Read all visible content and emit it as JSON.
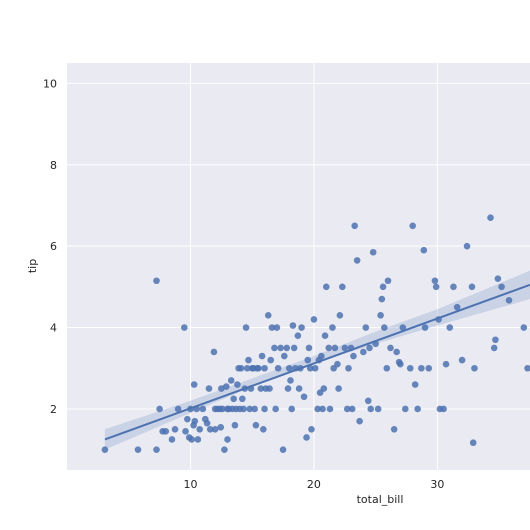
{
  "chart_data": {
    "type": "scatter",
    "title": "",
    "xlabel": "total_bill",
    "ylabel": "tip",
    "xlim": [
      0,
      37.5
    ],
    "ylim": [
      0.5,
      10.5
    ],
    "xticks": [
      10,
      20,
      30
    ],
    "yticks": [
      2,
      4,
      6,
      8,
      10
    ],
    "xtick_labels": [
      "10",
      "20",
      "30"
    ],
    "ytick_labels": [
      "2",
      "4",
      "6",
      "8",
      "10"
    ],
    "grid": true,
    "colors": {
      "background": "#eaeaf2",
      "grid": "#ffffff",
      "points": "#4c72b0",
      "line": "#4c72b0",
      "band": "#a5b6d6"
    },
    "regression": {
      "line": [
        [
          3.07,
          1.25
        ],
        [
          37.5,
          5.05
        ]
      ],
      "ci_band": {
        "x": [
          3.07,
          10,
          15,
          20,
          25,
          30,
          37.5
        ],
        "lower": [
          1.0,
          1.9,
          2.55,
          3.12,
          3.6,
          4.05,
          4.7
        ],
        "upper": [
          1.5,
          2.2,
          2.75,
          3.3,
          3.9,
          4.45,
          5.4
        ]
      }
    },
    "points": [
      [
        3.07,
        1.0
      ],
      [
        5.75,
        1.0
      ],
      [
        7.25,
        1.0
      ],
      [
        7.25,
        5.15
      ],
      [
        7.5,
        2.0
      ],
      [
        7.75,
        1.45
      ],
      [
        8.0,
        1.45
      ],
      [
        8.5,
        1.25
      ],
      [
        8.75,
        1.5
      ],
      [
        9.0,
        2.0
      ],
      [
        9.5,
        4.0
      ],
      [
        9.6,
        1.45
      ],
      [
        9.75,
        1.75
      ],
      [
        9.9,
        1.3
      ],
      [
        10.0,
        2.0
      ],
      [
        10.1,
        1.25
      ],
      [
        10.25,
        1.6
      ],
      [
        10.3,
        2.6
      ],
      [
        10.35,
        1.7
      ],
      [
        10.5,
        2.0
      ],
      [
        10.6,
        1.25
      ],
      [
        10.75,
        1.5
      ],
      [
        11.0,
        2.0
      ],
      [
        11.2,
        1.75
      ],
      [
        11.35,
        1.65
      ],
      [
        11.5,
        2.5
      ],
      [
        11.6,
        1.5
      ],
      [
        11.9,
        3.4
      ],
      [
        12.0,
        1.5
      ],
      [
        12.0,
        2.0
      ],
      [
        12.2,
        2.0
      ],
      [
        12.4,
        2.0
      ],
      [
        12.45,
        1.55
      ],
      [
        12.5,
        2.5
      ],
      [
        12.6,
        2.0
      ],
      [
        12.75,
        1.0
      ],
      [
        12.9,
        2.55
      ],
      [
        13.0,
        2.0
      ],
      [
        13.0,
        1.25
      ],
      [
        13.1,
        2.0
      ],
      [
        13.3,
        2.7
      ],
      [
        13.4,
        2.0
      ],
      [
        13.5,
        2.25
      ],
      [
        13.6,
        1.6
      ],
      [
        13.7,
        2.0
      ],
      [
        13.8,
        2.6
      ],
      [
        13.9,
        3.0
      ],
      [
        14.0,
        2.0
      ],
      [
        14.1,
        3.0
      ],
      [
        14.2,
        2.25
      ],
      [
        14.3,
        2.0
      ],
      [
        14.4,
        2.5
      ],
      [
        14.5,
        4.0
      ],
      [
        14.6,
        3.0
      ],
      [
        14.7,
        3.2
      ],
      [
        14.8,
        2.0
      ],
      [
        14.9,
        2.5
      ],
      [
        15.0,
        3.0
      ],
      [
        15.1,
        3.0
      ],
      [
        15.2,
        2.0
      ],
      [
        15.3,
        1.6
      ],
      [
        15.4,
        3.0
      ],
      [
        15.5,
        3.0
      ],
      [
        15.7,
        2.5
      ],
      [
        15.8,
        3.3
      ],
      [
        15.9,
        1.5
      ],
      [
        16.0,
        2.0
      ],
      [
        16.0,
        3.0
      ],
      [
        16.1,
        2.5
      ],
      [
        16.3,
        4.3
      ],
      [
        16.4,
        2.5
      ],
      [
        16.5,
        3.2
      ],
      [
        16.6,
        4.0
      ],
      [
        16.8,
        3.5
      ],
      [
        16.9,
        2.0
      ],
      [
        17.0,
        4.0
      ],
      [
        17.1,
        3.0
      ],
      [
        17.3,
        3.5
      ],
      [
        17.5,
        1.0
      ],
      [
        17.6,
        3.3
      ],
      [
        17.8,
        3.5
      ],
      [
        17.9,
        2.5
      ],
      [
        18.0,
        3.0
      ],
      [
        18.1,
        2.7
      ],
      [
        18.2,
        2.0
      ],
      [
        18.3,
        4.05
      ],
      [
        18.4,
        3.5
      ],
      [
        18.5,
        3.0
      ],
      [
        18.7,
        3.8
      ],
      [
        18.8,
        2.5
      ],
      [
        18.9,
        3.0
      ],
      [
        19.0,
        4.0
      ],
      [
        19.2,
        2.3
      ],
      [
        19.4,
        1.3
      ],
      [
        19.5,
        3.2
      ],
      [
        19.6,
        3.5
      ],
      [
        19.7,
        3.0
      ],
      [
        19.8,
        1.5
      ],
      [
        20.0,
        4.2
      ],
      [
        20.1,
        3.0
      ],
      [
        20.3,
        2.0
      ],
      [
        20.4,
        3.2
      ],
      [
        20.5,
        2.4
      ],
      [
        20.6,
        3.3
      ],
      [
        20.7,
        2.0
      ],
      [
        20.8,
        2.5
      ],
      [
        20.9,
        3.8
      ],
      [
        21.0,
        5.0
      ],
      [
        21.2,
        3.5
      ],
      [
        21.3,
        2.0
      ],
      [
        21.5,
        4.0
      ],
      [
        21.6,
        3.0
      ],
      [
        21.7,
        3.5
      ],
      [
        21.9,
        3.1
      ],
      [
        22.0,
        2.5
      ],
      [
        22.1,
        4.3
      ],
      [
        22.3,
        5.0
      ],
      [
        22.5,
        3.5
      ],
      [
        22.7,
        2.0
      ],
      [
        22.8,
        3.0
      ],
      [
        23.0,
        3.5
      ],
      [
        23.1,
        2.0
      ],
      [
        23.2,
        3.3
      ],
      [
        23.3,
        6.5
      ],
      [
        23.5,
        5.65
      ],
      [
        23.7,
        1.7
      ],
      [
        24.0,
        3.4
      ],
      [
        24.2,
        4.0
      ],
      [
        24.4,
        2.2
      ],
      [
        24.5,
        3.5
      ],
      [
        24.6,
        2.0
      ],
      [
        24.8,
        5.85
      ],
      [
        25.0,
        3.6
      ],
      [
        25.2,
        2.0
      ],
      [
        25.4,
        4.3
      ],
      [
        25.5,
        4.7
      ],
      [
        25.6,
        5.0
      ],
      [
        25.7,
        4.0
      ],
      [
        25.9,
        3.0
      ],
      [
        26.0,
        5.15
      ],
      [
        26.2,
        3.5
      ],
      [
        26.5,
        1.5
      ],
      [
        26.7,
        3.4
      ],
      [
        26.9,
        3.15
      ],
      [
        27.0,
        3.1
      ],
      [
        27.2,
        4.0
      ],
      [
        27.4,
        2.0
      ],
      [
        27.8,
        3.0
      ],
      [
        28.0,
        6.5
      ],
      [
        28.2,
        2.6
      ],
      [
        28.4,
        2.0
      ],
      [
        28.7,
        3.0
      ],
      [
        28.9,
        5.9
      ],
      [
        29.0,
        4.0
      ],
      [
        29.3,
        3.0
      ],
      [
        29.8,
        5.15
      ],
      [
        29.9,
        5.0
      ],
      [
        30.1,
        4.2
      ],
      [
        30.2,
        2.0
      ],
      [
        30.5,
        2.0
      ],
      [
        30.7,
        3.1
      ],
      [
        31.0,
        4.0
      ],
      [
        31.3,
        5.0
      ],
      [
        31.6,
        4.5
      ],
      [
        32.0,
        3.2
      ],
      [
        32.4,
        6.0
      ],
      [
        32.8,
        5.0
      ],
      [
        32.9,
        1.17
      ],
      [
        33.0,
        3.0
      ],
      [
        34.3,
        6.7
      ],
      [
        34.6,
        3.5
      ],
      [
        34.7,
        3.7
      ],
      [
        34.9,
        5.2
      ],
      [
        35.2,
        5.0
      ],
      [
        35.8,
        4.67
      ],
      [
        37.0,
        4.0
      ],
      [
        37.3,
        3.0
      ]
    ]
  }
}
